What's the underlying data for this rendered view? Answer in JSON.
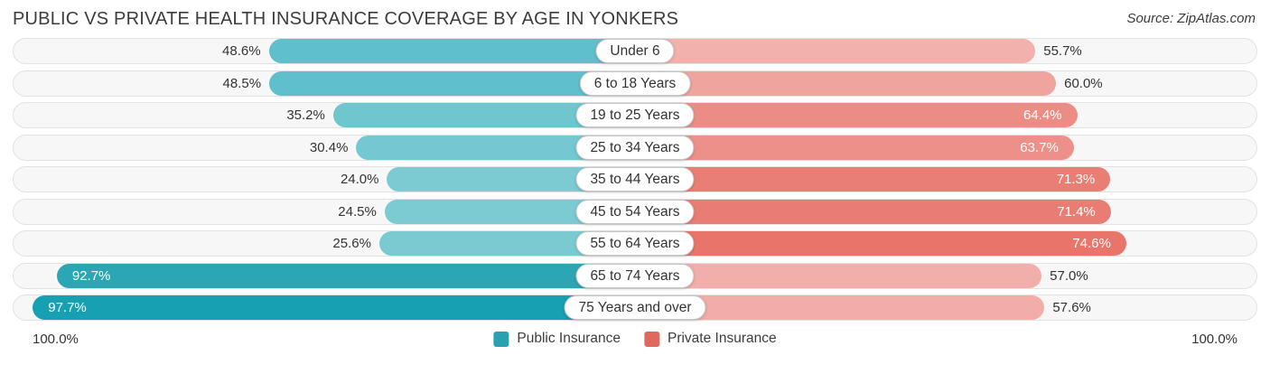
{
  "header": {
    "title": "PUBLIC VS PRIVATE HEALTH INSURANCE COVERAGE BY AGE IN YONKERS",
    "source": "Source: ZipAtlas.com"
  },
  "chart_data": {
    "type": "bar",
    "subtype": "diverging-horizontal",
    "title": "Public vs Private Health Insurance Coverage by Age in Yonkers",
    "categories": [
      "Under 6",
      "6 to 18 Years",
      "19 to 25 Years",
      "25 to 34 Years",
      "35 to 44 Years",
      "45 to 54 Years",
      "55 to 64 Years",
      "65 to 74 Years",
      "75 Years and over"
    ],
    "series": [
      {
        "name": "Public Insurance",
        "direction": "left",
        "color": "#2aa1ae",
        "values": [
          48.6,
          48.5,
          35.2,
          30.4,
          24.0,
          24.5,
          25.6,
          92.7,
          97.7
        ],
        "bar_colors": [
          "#5fc0cb",
          "#5fc0cb",
          "#6fc6cf",
          "#75c8d1",
          "#7ccbd3",
          "#7bcbd3",
          "#7acad2",
          "#2ca6b5",
          "#16a0b2"
        ]
      },
      {
        "name": "Private Insurance",
        "direction": "right",
        "color": "#e0695f",
        "values": [
          55.7,
          60.0,
          64.4,
          63.7,
          71.3,
          71.4,
          74.6,
          57.0,
          57.6
        ],
        "bar_colors": [
          "#f3b1ac",
          "#f0a49e",
          "#ec8d85",
          "#ed9089",
          "#e97e74",
          "#e97d74",
          "#e8746a",
          "#f2aeaa",
          "#f2ada8"
        ]
      }
    ],
    "value_format": "percent-1dp",
    "axis": {
      "left_label": "100.0%",
      "right_label": "100.0%",
      "max": 100.0
    },
    "legend_position": "bottom-center",
    "grid": false
  }
}
